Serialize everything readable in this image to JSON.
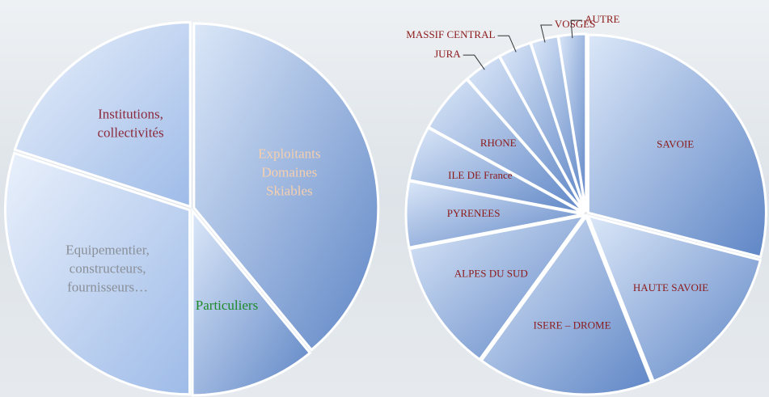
{
  "chart_data": [
    {
      "type": "pie",
      "categories": [
        [
          "Exploitants",
          "Domaines",
          "Skiables"
        ],
        [
          "Particuliers"
        ],
        [
          "Equipementier,",
          "constructeurs,",
          "fournisseurs…"
        ],
        [
          "Institutions,",
          "collectivités"
        ]
      ],
      "values": [
        39,
        11,
        30,
        20
      ],
      "label_colors": [
        "#f6cfae",
        "#1e8a2a",
        "#8a8f98",
        "#8b2a3c"
      ]
    },
    {
      "type": "pie",
      "categories": [
        "SAVOIE",
        "HAUTE SAVOIE",
        "ISERE – DROME",
        "ALPES DU SUD",
        "PYRENEES",
        "ILE DE France",
        "RHONE",
        "JURA",
        "MASSIF CENTRAL",
        "VOSGES",
        "AUTRE"
      ],
      "values": [
        29,
        15,
        16,
        12,
        6,
        5,
        5.5,
        3.5,
        3,
        2.5,
        2.5
      ],
      "label_color": "#8b1a1a"
    }
  ]
}
